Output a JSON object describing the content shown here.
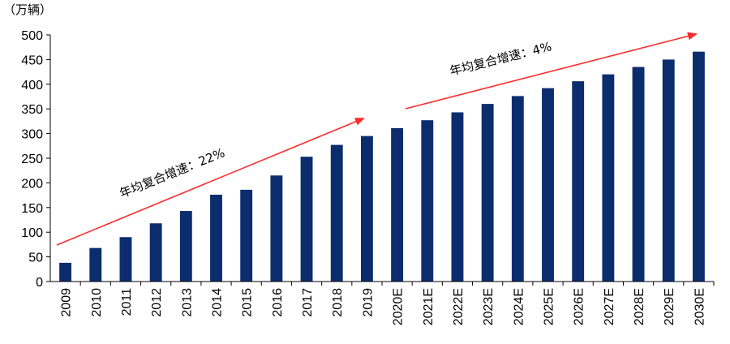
{
  "chart_data": {
    "type": "bar",
    "unit_label": "（万辆）",
    "categories": [
      "2009",
      "2010",
      "2011",
      "2012",
      "2013",
      "2014",
      "2015",
      "2016",
      "2017",
      "2018",
      "2019",
      "2020E",
      "2021E",
      "2022E",
      "2023E",
      "2024E",
      "2025E",
      "2026E",
      "2027E",
      "2028E",
      "2029E",
      "2030E"
    ],
    "values": [
      38,
      68,
      90,
      118,
      143,
      176,
      186,
      215,
      253,
      277,
      295,
      311,
      327,
      343,
      360,
      376,
      392,
      406,
      420,
      435,
      450,
      466
    ],
    "ylim": [
      0,
      500
    ],
    "yticks": [
      0,
      50,
      100,
      150,
      200,
      250,
      300,
      350,
      400,
      450,
      500
    ],
    "bar_color": "#0b2d6e",
    "arrow_color": "#ff2a2a",
    "annotations": [
      {
        "text": "年均复合增速：22%"
      },
      {
        "text": "年均复合增速：4%"
      }
    ]
  }
}
